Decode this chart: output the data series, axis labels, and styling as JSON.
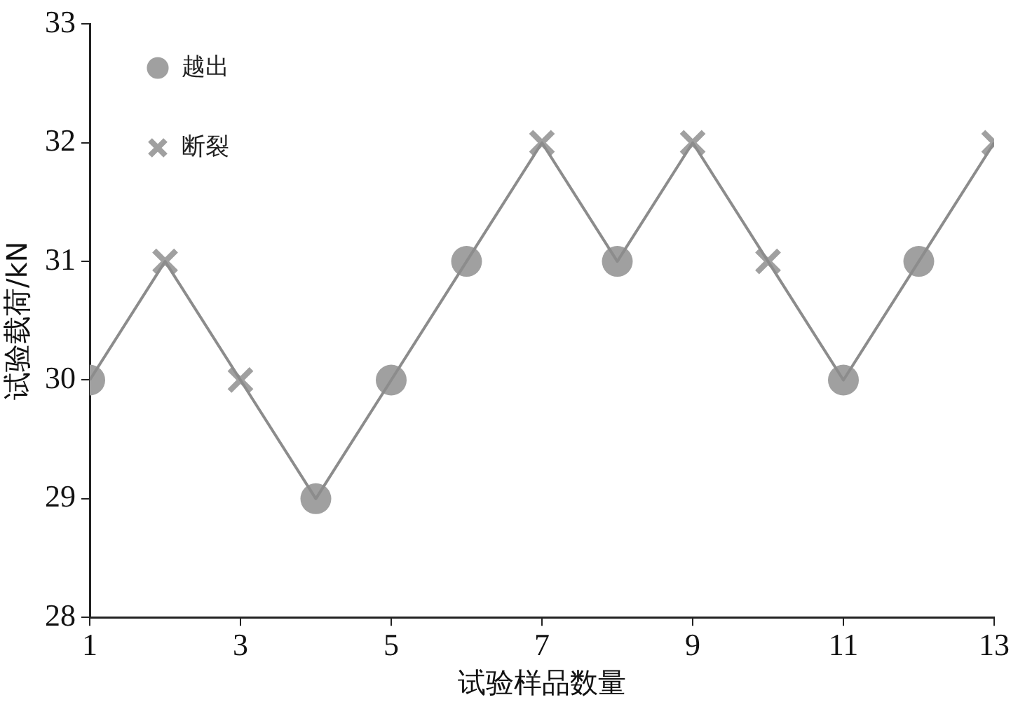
{
  "chart_data": {
    "type": "line",
    "xlabel": "试验样品数量",
    "ylabel": "试验载荷/kN",
    "x": [
      1,
      2,
      3,
      4,
      5,
      6,
      7,
      8,
      9,
      10,
      11,
      12,
      13
    ],
    "xlim": [
      1,
      13
    ],
    "xticks": [
      1,
      3,
      5,
      7,
      9,
      11,
      13
    ],
    "ylim": [
      28,
      33
    ],
    "yticks": [
      28,
      29,
      30,
      31,
      32,
      33
    ],
    "grid": false,
    "legend": "top left",
    "series": [
      {
        "color": "#8c8c8c",
        "marker": "none",
        "values": [
          30,
          31,
          30,
          29,
          30,
          31,
          32,
          31,
          32,
          31,
          30,
          31,
          32
        ]
      },
      {
        "name": "越出",
        "type": "scatter",
        "color": "#a0a0a0",
        "marker": "circle",
        "values": [
          30,
          null,
          null,
          29,
          30,
          31,
          null,
          31,
          null,
          null,
          30,
          31,
          null
        ]
      },
      {
        "name": "断裂",
        "type": "scatter",
        "color": "#a0a0a0",
        "marker": "cross",
        "values": [
          null,
          31,
          30,
          null,
          null,
          null,
          32,
          null,
          32,
          31,
          null,
          null,
          32
        ]
      }
    ]
  }
}
